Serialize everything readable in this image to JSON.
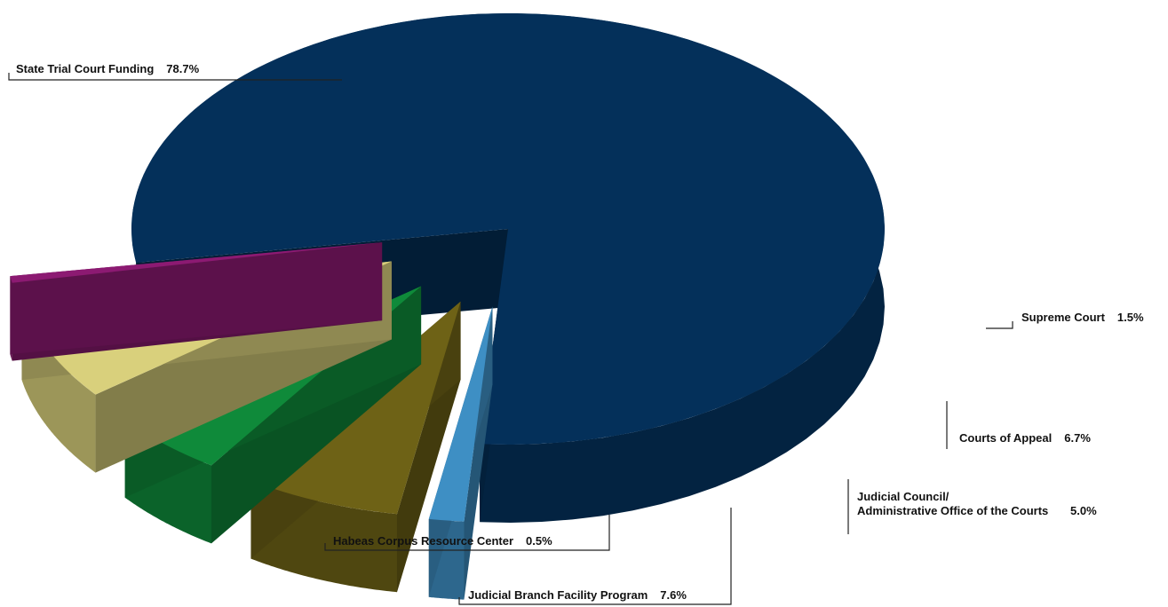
{
  "chart_data": {
    "type": "pie",
    "title": "",
    "slices": [
      {
        "label": "State Trial Court Funding",
        "value": 78.7,
        "value_label": "78.7%",
        "color": "#04305a"
      },
      {
        "label": "Supreme Court",
        "value": 1.5,
        "value_label": "1.5%",
        "color": "#3e8fc4"
      },
      {
        "label": "Courts of Appeal",
        "value": 6.7,
        "value_label": "6.7%",
        "color": "#6e6216"
      },
      {
        "label": "Judicial Council/",
        "label_line2": "Administrative Office of the Courts",
        "value": 5.0,
        "value_label": "5.0%",
        "color": "#0f8a3a"
      },
      {
        "label": "Judicial Branch Facility Program",
        "value": 7.6,
        "value_label": "7.6%",
        "color": "#d9d07c"
      },
      {
        "label": "Habeas Corpus Resource Center",
        "value": 0.5,
        "value_label": "0.5%",
        "color": "#8c1a72"
      }
    ],
    "style": "3d-exploded",
    "legend": "none"
  }
}
